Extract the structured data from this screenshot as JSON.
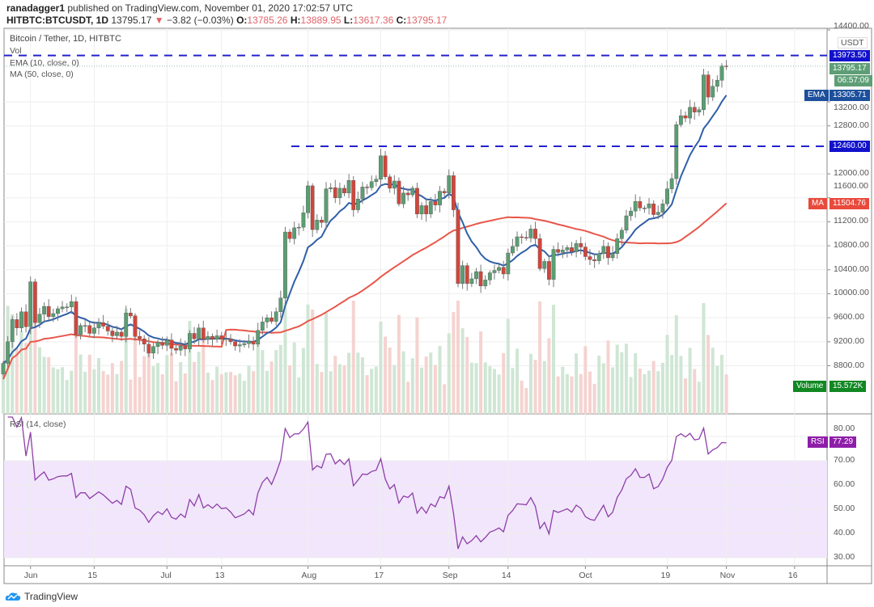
{
  "header": {
    "author": "ranadagger1",
    "published": "published on TradingView.com, November 01, 2020 17:02:57 UTC",
    "symbol": "HITBTC:BTCUSDT, 1D",
    "last": "13795.17",
    "change": "−3.82 (−0.03%)",
    "o_label": "O:",
    "o": "13785.26",
    "h_label": "H:",
    "h": "13889.95",
    "l_label": "L:",
    "l": "13617.36",
    "c_label": "C:",
    "c": "13795.17"
  },
  "legend": {
    "title": "Bitcoin / Tether, 1D, HITBTC",
    "vol": "Vol",
    "ema": "EMA (10, close, 0)",
    "ma": "MA (50, close, 0)",
    "rsi": "RSI (14, close)"
  },
  "axis": {
    "currency": "USDT",
    "price_ticks": [
      "14400.00",
      "13200.00",
      "12800.00",
      "12000.00",
      "11600.00",
      "11200.00",
      "10800.00",
      "10400.00",
      "10000.00",
      "9600.00",
      "9200.00",
      "8800.00"
    ],
    "rsi_ticks": [
      "80.00",
      "70.00",
      "60.00",
      "50.00",
      "40.00",
      "30.00"
    ],
    "time_ticks": [
      "Jun",
      "15",
      "Jul",
      "13",
      "Aug",
      "17",
      "Sep",
      "14",
      "Oct",
      "19",
      "Nov",
      "16"
    ]
  },
  "badges": {
    "resistance": "13973.50",
    "last": "13795.17",
    "countdown": "06:57:09",
    "ema_label": "EMA",
    "ema": "13305.71",
    "support": "12460.00",
    "ma_label": "MA",
    "ma": "11504.76",
    "volume_label": "Volume",
    "volume": "15.572K",
    "rsi_label": "RSI",
    "rsi": "77.29"
  },
  "colors": {
    "up": "#5a9e72",
    "down": "#d0463b",
    "ema": "#2f5fa8",
    "ma": "#e8574a",
    "rsi": "#8e3fa8",
    "hline": "#2222cc",
    "rsi_band": "#f1e6fb"
  },
  "logo": "TradingView",
  "chart_data": {
    "type": "candlestick",
    "start_date": "2020-05-26",
    "end_date": "2020-11-01",
    "ylim": [
      8500,
      14400
    ],
    "rsi_ylim": [
      28,
      88
    ],
    "rsi_band": [
      30,
      70
    ],
    "horizontal_lines": [
      13973.5,
      12460
    ],
    "closes": [
      8840,
      9200,
      9570,
      9430,
      9700,
      9450,
      10200,
      9520,
      9660,
      9790,
      9620,
      9670,
      9750,
      9780,
      9780,
      9870,
      9320,
      9470,
      9470,
      9340,
      9430,
      9520,
      9460,
      9380,
      9300,
      9360,
      9290,
      9680,
      9630,
      9290,
      9250,
      9160,
      9010,
      9120,
      9190,
      9140,
      9230,
      9090,
      9060,
      9130,
      9080,
      9340,
      9250,
      9430,
      9240,
      9290,
      9240,
      9300,
      9240,
      9250,
      9200,
      9130,
      9150,
      9170,
      9210,
      9160,
      9390,
      9530,
      9600,
      9540,
      9700,
      9930,
      11030,
      10920,
      11100,
      11110,
      11350,
      11800,
      11070,
      11230,
      11190,
      11750,
      11770,
      11600,
      11760,
      11680,
      11890,
      11400,
      11580,
      11780,
      11770,
      11870,
      11910,
      12300,
      11950,
      11760,
      11880,
      11500,
      11680,
      11650,
      11760,
      11330,
      11470,
      11330,
      11540,
      11480,
      11710,
      11680,
      11970,
      11400,
      10170,
      10470,
      10170,
      10250,
      10370,
      10130,
      10230,
      10350,
      10390,
      10440,
      10330,
      10680,
      10790,
      10950,
      10940,
      10930,
      11080,
      10920,
      10420,
      10540,
      10240,
      10740,
      10690,
      10730,
      10770,
      10700,
      10840,
      10780,
      10620,
      10570,
      10550,
      10670,
      10790,
      10600,
      10670,
      10920,
      11060,
      11300,
      11380,
      11540,
      11430,
      11430,
      11500,
      11320,
      11360,
      11500,
      11750,
      11920,
      12820,
      12970,
      12930,
      13110,
      13030,
      13070,
      13650,
      13280,
      13460,
      13560,
      13800,
      13795.17
    ]
  }
}
